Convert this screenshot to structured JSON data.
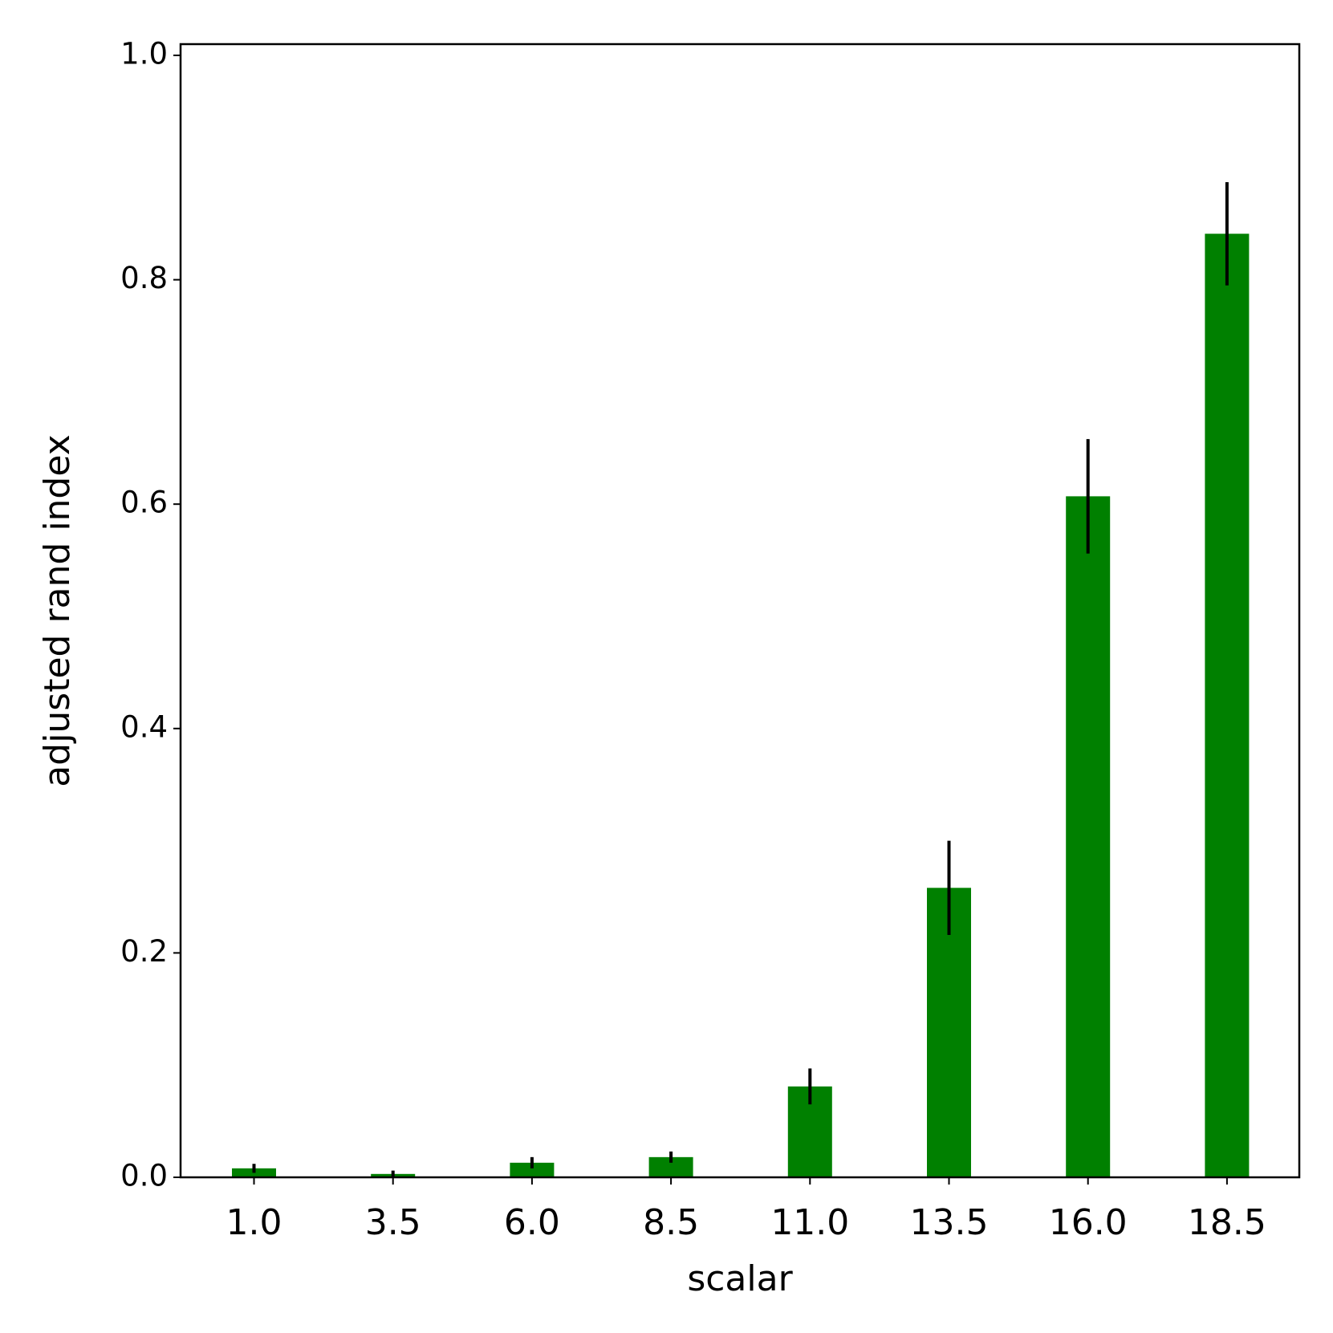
{
  "chart_data": {
    "type": "bar",
    "x_label": "scalar",
    "y_label": "adjusted rand index",
    "categories": [
      "1.0",
      "3.5",
      "6.0",
      "8.5",
      "11.0",
      "13.5",
      "16.0",
      "18.5"
    ],
    "values": [
      0.008,
      0.003,
      0.013,
      0.018,
      0.081,
      0.258,
      0.607,
      0.841
    ],
    "errors": [
      0.004,
      0.003,
      0.005,
      0.005,
      0.016,
      0.042,
      0.051,
      0.046
    ],
    "color": "#008000",
    "error_color": "#000000",
    "ylim": [
      0,
      1.01
    ],
    "yticks": [
      {
        "value": 0,
        "label": "0.0"
      },
      0.2,
      0.4,
      0.6,
      0.8,
      {
        "value": 1,
        "label": "1.0"
      }
    ],
    "grid": false
  }
}
